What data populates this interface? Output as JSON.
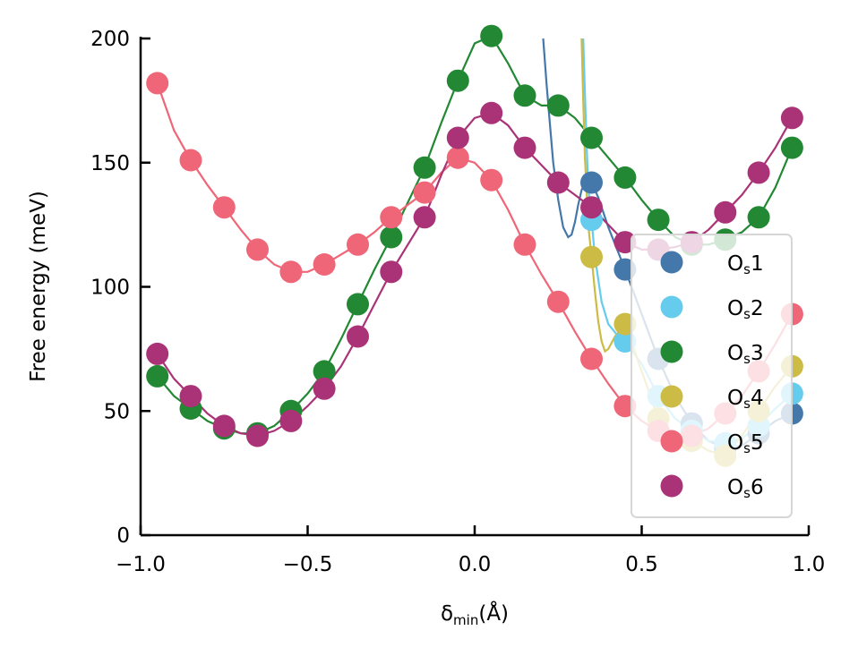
{
  "chart_data": {
    "type": "scatter",
    "title": "",
    "xlabel": "δmin(Å)",
    "xlabel_main": "δ",
    "xlabel_sub": "min",
    "xlabel_suffix": "(Å)",
    "ylabel": "Free energy (meV)",
    "xlim": [
      -1.0,
      1.0
    ],
    "ylim": [
      0,
      200
    ],
    "xticks": [
      -1.0,
      -0.5,
      0.0,
      0.5,
      1.0
    ],
    "xtick_labels": [
      "−1.0",
      "−0.5",
      "0.0",
      "0.5",
      "1.0"
    ],
    "yticks": [
      0,
      50,
      100,
      150,
      200
    ],
    "ytick_labels": [
      "0",
      "50",
      "100",
      "150",
      "200"
    ],
    "legend_position": "bottom-right",
    "series": [
      {
        "name": "Os1",
        "label_main": "O",
        "label_sub": "s",
        "label_num": "1",
        "color": "#4477aa",
        "x": [
          0.35,
          0.45,
          0.55,
          0.65,
          0.75,
          0.85,
          0.95
        ],
        "y": [
          142,
          107,
          71,
          45,
          35,
          41,
          49
        ],
        "curve_x": [
          0.205,
          0.215,
          0.225,
          0.235,
          0.25,
          0.265,
          0.28,
          0.29,
          0.3,
          0.31,
          0.32,
          0.33,
          0.34,
          0.35,
          0.37,
          0.4,
          0.45,
          0.5,
          0.55,
          0.6,
          0.65,
          0.7,
          0.75,
          0.8,
          0.85,
          0.9,
          0.95
        ],
        "curve_y": [
          200,
          182,
          166,
          150,
          135,
          124,
          120,
          121,
          126,
          133,
          139,
          142,
          143,
          142,
          136,
          124,
          107,
          89,
          71,
          56,
          45,
          38,
          35,
          36,
          41,
          46,
          49
        ]
      },
      {
        "name": "Os2",
        "label_main": "O",
        "label_sub": "s",
        "label_num": "2",
        "color": "#66ccee",
        "x": [
          0.35,
          0.45,
          0.55,
          0.65,
          0.75,
          0.85,
          0.95
        ],
        "y": [
          127,
          78,
          56,
          42,
          37,
          44,
          57
        ],
        "curve_x": [
          0.325,
          0.33,
          0.335,
          0.34,
          0.35,
          0.36,
          0.38,
          0.4,
          0.43,
          0.45,
          0.5,
          0.55,
          0.6,
          0.65,
          0.7,
          0.75,
          0.8,
          0.85,
          0.9,
          0.95
        ],
        "curve_y": [
          200,
          178,
          157,
          140,
          127,
          112,
          94,
          85,
          80,
          78,
          69,
          56,
          47,
          42,
          38,
          37,
          39,
          44,
          51,
          57
        ]
      },
      {
        "name": "Os3",
        "label_main": "O",
        "label_sub": "s",
        "label_num": "3",
        "color": "#228833",
        "x": [
          -0.95,
          -0.85,
          -0.75,
          -0.65,
          -0.55,
          -0.45,
          -0.35,
          -0.25,
          -0.15,
          -0.05,
          0.05,
          0.15,
          0.25,
          0.35,
          0.45,
          0.55,
          0.65,
          0.75,
          0.85,
          0.95
        ],
        "y": [
          64,
          51,
          43,
          41,
          50,
          66,
          93,
          120,
          148,
          183,
          201,
          177,
          173,
          160,
          144,
          127,
          117,
          119,
          128,
          156
        ],
        "curve_x": [
          -0.95,
          -0.9,
          -0.85,
          -0.8,
          -0.75,
          -0.7,
          -0.65,
          -0.6,
          -0.55,
          -0.5,
          -0.45,
          -0.4,
          -0.35,
          -0.3,
          -0.25,
          -0.2,
          -0.15,
          -0.1,
          -0.05,
          0.0,
          0.05,
          0.1,
          0.15,
          0.2,
          0.25,
          0.3,
          0.35,
          0.4,
          0.45,
          0.5,
          0.55,
          0.6,
          0.65,
          0.7,
          0.75,
          0.8,
          0.85,
          0.9,
          0.95
        ],
        "curve_y": [
          64,
          56,
          51,
          46,
          43,
          41,
          41,
          44,
          50,
          57,
          66,
          79,
          93,
          107,
          120,
          134,
          148,
          166,
          183,
          198,
          201,
          190,
          177,
          173,
          173,
          168,
          160,
          152,
          144,
          135,
          127,
          120,
          117,
          117,
          119,
          122,
          128,
          140,
          156
        ]
      },
      {
        "name": "Os4",
        "label_main": "O",
        "label_sub": "s",
        "label_num": "4",
        "color": "#ccbb44",
        "x": [
          0.35,
          0.45,
          0.55,
          0.65,
          0.75,
          0.85,
          0.95
        ],
        "y": [
          112,
          85,
          47,
          38,
          32,
          50,
          68
        ],
        "curve_x": [
          0.32,
          0.325,
          0.33,
          0.34,
          0.35,
          0.36,
          0.37,
          0.38,
          0.39,
          0.4,
          0.42,
          0.45,
          0.5,
          0.55,
          0.6,
          0.65,
          0.7,
          0.75,
          0.8,
          0.85,
          0.9,
          0.95
        ],
        "curve_y": [
          200,
          175,
          152,
          125,
          112,
          98,
          86,
          78,
          74,
          75,
          80,
          85,
          66,
          47,
          40,
          38,
          34,
          32,
          40,
          50,
          60,
          68
        ]
      },
      {
        "name": "Os5",
        "label_main": "O",
        "label_sub": "s",
        "label_num": "5",
        "color": "#ee6677",
        "x": [
          -0.95,
          -0.85,
          -0.75,
          -0.65,
          -0.55,
          -0.45,
          -0.35,
          -0.25,
          -0.15,
          -0.05,
          0.05,
          0.15,
          0.25,
          0.35,
          0.45,
          0.55,
          0.65,
          0.75,
          0.85,
          0.95
        ],
        "y": [
          182,
          151,
          132,
          115,
          106,
          109,
          117,
          128,
          138,
          152,
          143,
          117,
          94,
          71,
          52,
          42,
          40,
          49,
          66,
          89
        ],
        "curve_x": [
          -0.95,
          -0.9,
          -0.85,
          -0.8,
          -0.75,
          -0.7,
          -0.65,
          -0.6,
          -0.55,
          -0.5,
          -0.45,
          -0.4,
          -0.35,
          -0.3,
          -0.25,
          -0.2,
          -0.15,
          -0.1,
          -0.05,
          0.0,
          0.05,
          0.1,
          0.15,
          0.2,
          0.25,
          0.3,
          0.35,
          0.4,
          0.45,
          0.5,
          0.55,
          0.6,
          0.65,
          0.7,
          0.75,
          0.8,
          0.85,
          0.9,
          0.95
        ],
        "curve_y": [
          182,
          163,
          151,
          141,
          132,
          123,
          115,
          109,
          106,
          106,
          109,
          113,
          117,
          122,
          128,
          133,
          138,
          146,
          152,
          150,
          143,
          131,
          117,
          105,
          94,
          82,
          71,
          61,
          52,
          46,
          42,
          40,
          40,
          43,
          49,
          56,
          66,
          77,
          89
        ]
      },
      {
        "name": "Os6",
        "label_main": "O",
        "label_sub": "s",
        "label_num": "6",
        "color": "#aa3377",
        "x": [
          -0.95,
          -0.85,
          -0.75,
          -0.65,
          -0.55,
          -0.45,
          -0.35,
          -0.25,
          -0.15,
          -0.05,
          0.05,
          0.15,
          0.25,
          0.35,
          0.45,
          0.55,
          0.65,
          0.75,
          0.85,
          0.95
        ],
        "y": [
          73,
          56,
          44,
          40,
          46,
          59,
          80,
          106,
          128,
          160,
          170,
          156,
          142,
          132,
          118,
          115,
          118,
          130,
          146,
          168
        ],
        "curve_x": [
          -0.95,
          -0.9,
          -0.85,
          -0.8,
          -0.75,
          -0.7,
          -0.65,
          -0.6,
          -0.55,
          -0.5,
          -0.45,
          -0.4,
          -0.35,
          -0.3,
          -0.25,
          -0.2,
          -0.15,
          -0.1,
          -0.05,
          0.0,
          0.05,
          0.1,
          0.15,
          0.2,
          0.25,
          0.3,
          0.35,
          0.4,
          0.45,
          0.5,
          0.55,
          0.6,
          0.65,
          0.7,
          0.75,
          0.8,
          0.85,
          0.9,
          0.95
        ],
        "curve_y": [
          73,
          63,
          56,
          49,
          44,
          41,
          40,
          42,
          46,
          52,
          59,
          68,
          80,
          93,
          106,
          117,
          128,
          145,
          160,
          168,
          170,
          165,
          156,
          149,
          142,
          137,
          132,
          125,
          118,
          115,
          115,
          116,
          118,
          123,
          130,
          137,
          146,
          156,
          168
        ]
      }
    ]
  }
}
